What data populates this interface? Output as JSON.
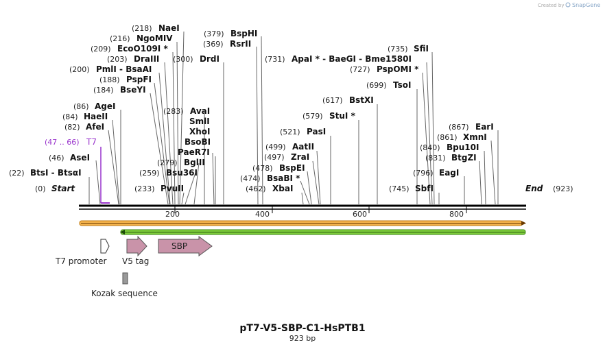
{
  "credit": {
    "prefix": "Created by",
    "brand": "SnapGene"
  },
  "map": {
    "title": "pT7-V5-SBP-C1-HsPTB1",
    "length_label": "923 bp",
    "start_num": "(0)",
    "start_label": "Start",
    "end_label": "End",
    "end_num": "(923)",
    "ticks": [
      "200",
      "400",
      "600",
      "800"
    ]
  },
  "sites": [
    {
      "num": "(0)",
      "name": "Start",
      "pos": 0
    },
    {
      "num": "(22)",
      "name": "BtsI - BtsαI",
      "pos": 22
    },
    {
      "num": "(46)",
      "name": "AseI",
      "pos": 46
    },
    {
      "num": "(47 .. 66)",
      "name": "T7",
      "pos": 47
    },
    {
      "num": "(82)",
      "name": "AfeI",
      "pos": 82
    },
    {
      "num": "(84)",
      "name": "HaeII",
      "pos": 84
    },
    {
      "num": "(86)",
      "name": "AgeI",
      "pos": 86
    },
    {
      "num": "(184)",
      "name": "BseYI",
      "pos": 184
    },
    {
      "num": "(188)",
      "name": "PspFI",
      "pos": 188
    },
    {
      "num": "(200)",
      "name": "PmlI - BsaAI",
      "pos": 200
    },
    {
      "num": "(203)",
      "name": "DraIII",
      "pos": 203
    },
    {
      "num": "(209)",
      "name": "EcoO109I *",
      "pos": 209
    },
    {
      "num": "(216)",
      "name": "NgoMIV",
      "pos": 216
    },
    {
      "num": "(218)",
      "name": "NaeI",
      "pos": 218
    },
    {
      "num": "(233)",
      "name": "PvuII",
      "pos": 233
    },
    {
      "num": "(259)",
      "name": "Bsu36I",
      "pos": 259
    },
    {
      "num": "(279)",
      "name": "BglII",
      "pos": 279
    },
    {
      "num": "",
      "name": "PaeR7I",
      "pos": 283
    },
    {
      "num": "",
      "name": "BsoBI",
      "pos": 283
    },
    {
      "num": "",
      "name": "XhoI",
      "pos": 283
    },
    {
      "num": "",
      "name": "SmlI",
      "pos": 283
    },
    {
      "num": "(283)",
      "name": "AvaI",
      "pos": 283
    },
    {
      "num": "(300)",
      "name": "DrdI",
      "pos": 300
    },
    {
      "num": "(369)",
      "name": "RsrII",
      "pos": 369
    },
    {
      "num": "(379)",
      "name": "BspHI",
      "pos": 379
    },
    {
      "num": "(462)",
      "name": "XbaI",
      "pos": 462
    },
    {
      "num": "(474)",
      "name": "BsaBI *",
      "pos": 474
    },
    {
      "num": "(478)",
      "name": "BspEI",
      "pos": 478
    },
    {
      "num": "(497)",
      "name": "ZraI",
      "pos": 497
    },
    {
      "num": "(499)",
      "name": "AatII",
      "pos": 499
    },
    {
      "num": "(521)",
      "name": "PasI",
      "pos": 521
    },
    {
      "num": "(579)",
      "name": "StuI *",
      "pos": 579
    },
    {
      "num": "(617)",
      "name": "BstXI",
      "pos": 617
    },
    {
      "num": "(699)",
      "name": "TsoI",
      "pos": 699
    },
    {
      "num": "(727)",
      "name": "PspOMI *",
      "pos": 727
    },
    {
      "num": "(731)",
      "name": "ApaI * - BaeGI - Bme1580I",
      "pos": 731
    },
    {
      "num": "(735)",
      "name": "SfiI",
      "pos": 735
    },
    {
      "num": "(745)",
      "name": "SbfI",
      "pos": 745
    },
    {
      "num": "(796)",
      "name": "EagI",
      "pos": 796
    },
    {
      "num": "(831)",
      "name": "BtgZI",
      "pos": 831
    },
    {
      "num": "(840)",
      "name": "Bpu10I",
      "pos": 840
    },
    {
      "num": "(861)",
      "name": "XmnI",
      "pos": 861
    },
    {
      "num": "(867)",
      "name": "EarI",
      "pos": 867
    }
  ],
  "features": [
    {
      "name": "T7 promoter",
      "start": 47,
      "end": 66,
      "type": "promoter",
      "color": "#ffffff"
    },
    {
      "name": "V5 tag",
      "start": 101,
      "end": 142,
      "type": "tag",
      "color": "#c993a9"
    },
    {
      "name": "SBP",
      "start": 172,
      "end": 285,
      "type": "cds",
      "color": "#c993a9"
    },
    {
      "name": "Kozak sequence",
      "start": 91,
      "end": 100,
      "type": "misc",
      "color": "#999999"
    }
  ],
  "colors": {
    "t7_label": "#9933cc",
    "orf_forward": "#f3b24c",
    "orf_reverse": "#7fce3c",
    "feature_fill": "#c993a9",
    "kozak": "#999999"
  }
}
